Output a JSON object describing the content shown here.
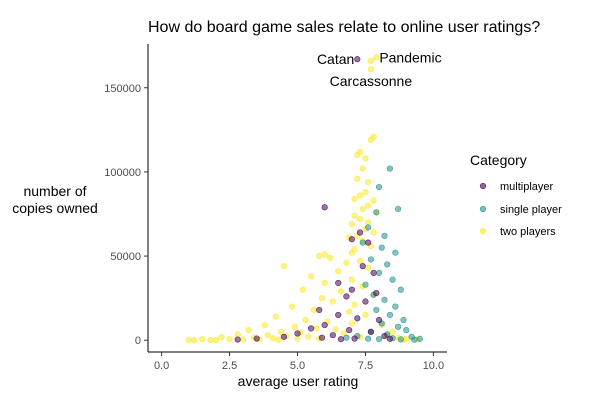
{
  "chart_data": {
    "type": "scatter",
    "title": "How do board game sales relate to online user ratings?",
    "xlabel": "average user rating",
    "ylabel_lines": [
      "number of",
      "copies owned"
    ],
    "xlim": [
      -0.5,
      10.5
    ],
    "ylim": [
      -7000,
      176000
    ],
    "x_ticks": [
      0,
      2.5,
      5,
      7.5,
      10
    ],
    "x_tick_labels": [
      "0.0",
      "2.5",
      "5.0",
      "7.5",
      "10.0"
    ],
    "y_ticks": [
      0,
      50000,
      100000,
      150000
    ],
    "y_tick_labels": [
      "0",
      "50000",
      "100000",
      "150000"
    ],
    "grid": false,
    "legend": {
      "title": "Category",
      "placement": "right",
      "entries": [
        {
          "label": "multiplayer",
          "color": "#440154"
        },
        {
          "label": "single player",
          "color": "#21908C"
        },
        {
          "label": "two players",
          "color": "#FDE725"
        }
      ]
    },
    "annotations": [
      {
        "text": "Catan",
        "x": 7.2,
        "y": 167000,
        "anchor": "end"
      },
      {
        "text": "Pandemic",
        "x": 7.9,
        "y": 168000,
        "anchor": "start"
      },
      {
        "text": "Carcassonne",
        "x": 7.7,
        "y": 154000,
        "anchor": "middle"
      }
    ],
    "series": [
      {
        "name": "multiplayer",
        "color": "#440154",
        "points": [
          [
            7.2,
            167000
          ],
          [
            6.0,
            79000
          ],
          [
            7.3,
            64000
          ],
          [
            7.0,
            60000
          ],
          [
            7.6,
            58000
          ],
          [
            7.4,
            44000
          ],
          [
            7.8,
            40000
          ],
          [
            6.5,
            34000
          ],
          [
            7.0,
            30000
          ],
          [
            7.9,
            28000
          ],
          [
            6.8,
            26000
          ],
          [
            7.5,
            23000
          ],
          [
            5.8,
            18000
          ],
          [
            6.5,
            15000
          ],
          [
            7.2,
            13000
          ],
          [
            8.0,
            12000
          ],
          [
            6.0,
            9000
          ],
          [
            5.5,
            7000
          ],
          [
            6.9,
            6000
          ],
          [
            7.7,
            5000
          ],
          [
            5.0,
            4000
          ],
          [
            6.3,
            3000
          ],
          [
            4.5,
            2000
          ],
          [
            8.2,
            2500
          ],
          [
            3.5,
            1000
          ],
          [
            5.9,
            1500
          ],
          [
            7.1,
            1000
          ],
          [
            8.4,
            800
          ],
          [
            2.8,
            400
          ],
          [
            6.6,
            600
          ]
        ]
      },
      {
        "name": "single player",
        "color": "#21908C",
        "points": [
          [
            8.4,
            102000
          ],
          [
            8.0,
            91000
          ],
          [
            8.7,
            78000
          ],
          [
            7.9,
            76000
          ],
          [
            7.6,
            67000
          ],
          [
            8.2,
            62000
          ],
          [
            7.4,
            58000
          ],
          [
            8.1,
            55000
          ],
          [
            8.6,
            52000
          ],
          [
            7.7,
            48000
          ],
          [
            8.3,
            45000
          ],
          [
            8.0,
            40000
          ],
          [
            8.5,
            36000
          ],
          [
            7.5,
            33000
          ],
          [
            8.8,
            30000
          ],
          [
            7.8,
            27000
          ],
          [
            8.2,
            24000
          ],
          [
            8.6,
            20000
          ],
          [
            7.9,
            18000
          ],
          [
            8.4,
            15000
          ],
          [
            8.9,
            12000
          ],
          [
            8.1,
            10000
          ],
          [
            8.7,
            8000
          ],
          [
            9.0,
            6000
          ],
          [
            7.7,
            5000
          ],
          [
            8.3,
            3500
          ],
          [
            9.2,
            2000
          ],
          [
            7.2,
            2500
          ],
          [
            8.5,
            1200
          ],
          [
            9.5,
            800
          ],
          [
            6.8,
            1500
          ],
          [
            7.6,
            900
          ],
          [
            8.0,
            700
          ],
          [
            8.8,
            500
          ],
          [
            9.3,
            300
          ]
        ]
      },
      {
        "name": "two players",
        "color": "#FDE725",
        "points": [
          [
            7.7,
            166000
          ],
          [
            7.9,
            168000
          ],
          [
            7.7,
            161000
          ],
          [
            7.8,
            121000
          ],
          [
            7.7,
            119000
          ],
          [
            7.3,
            112000
          ],
          [
            7.2,
            110000
          ],
          [
            7.5,
            108000
          ],
          [
            7.4,
            102000
          ],
          [
            7.2,
            96000
          ],
          [
            7.6,
            94000
          ],
          [
            7.5,
            88000
          ],
          [
            7.3,
            86000
          ],
          [
            7.1,
            84000
          ],
          [
            7.8,
            83000
          ],
          [
            7.6,
            80000
          ],
          [
            7.4,
            78000
          ],
          [
            7.9,
            76000
          ],
          [
            7.1,
            74000
          ],
          [
            7.3,
            72000
          ],
          [
            7.6,
            70000
          ],
          [
            7.0,
            69000
          ],
          [
            7.5,
            66000
          ],
          [
            7.8,
            64000
          ],
          [
            7.2,
            62000
          ],
          [
            6.9,
            61000
          ],
          [
            7.4,
            59000
          ],
          [
            7.7,
            56000
          ],
          [
            7.1,
            54000
          ],
          [
            7.0,
            52000
          ],
          [
            6.0,
            51000
          ],
          [
            5.8,
            50000
          ],
          [
            6.2,
            49000
          ],
          [
            7.3,
            47000
          ],
          [
            6.8,
            46000
          ],
          [
            4.5,
            44000
          ],
          [
            7.6,
            43000
          ],
          [
            6.5,
            41000
          ],
          [
            5.5,
            38000
          ],
          [
            7.0,
            36000
          ],
          [
            6.0,
            34000
          ],
          [
            7.4,
            32000
          ],
          [
            5.2,
            30000
          ],
          [
            6.6,
            29000
          ],
          [
            7.8,
            27000
          ],
          [
            5.9,
            25000
          ],
          [
            6.3,
            23000
          ],
          [
            7.1,
            21000
          ],
          [
            4.8,
            20000
          ],
          [
            5.6,
            18000
          ],
          [
            6.9,
            17000
          ],
          [
            7.5,
            15000
          ],
          [
            4.2,
            14000
          ],
          [
            5.3,
            12000
          ],
          [
            6.1,
            11000
          ],
          [
            7.0,
            10000
          ],
          [
            3.8,
            9000
          ],
          [
            4.9,
            8000
          ],
          [
            5.7,
            7000
          ],
          [
            6.4,
            6500
          ],
          [
            3.2,
            6000
          ],
          [
            4.4,
            5000
          ],
          [
            5.1,
            4500
          ],
          [
            6.7,
            4000
          ],
          [
            2.8,
            3500
          ],
          [
            3.9,
            3000
          ],
          [
            4.6,
            2500
          ],
          [
            5.4,
            2200
          ],
          [
            7.3,
            2000
          ],
          [
            2.2,
            1800
          ],
          [
            3.4,
            1500
          ],
          [
            4.1,
            1200
          ],
          [
            5.0,
            1000
          ],
          [
            5.8,
            900
          ],
          [
            1.5,
            700
          ],
          [
            2.5,
            600
          ],
          [
            3.0,
            500
          ],
          [
            3.6,
            400
          ],
          [
            4.3,
            300
          ],
          [
            1.0,
            200
          ],
          [
            1.8,
            150
          ],
          [
            2.0,
            100
          ],
          [
            1.2,
            50
          ],
          [
            8.1,
            9000
          ],
          [
            8.5,
            5000
          ],
          [
            8.3,
            3000
          ],
          [
            8.7,
            1500
          ],
          [
            9.0,
            800
          ],
          [
            9.4,
            400
          ],
          [
            8.9,
            200
          ]
        ]
      }
    ]
  }
}
